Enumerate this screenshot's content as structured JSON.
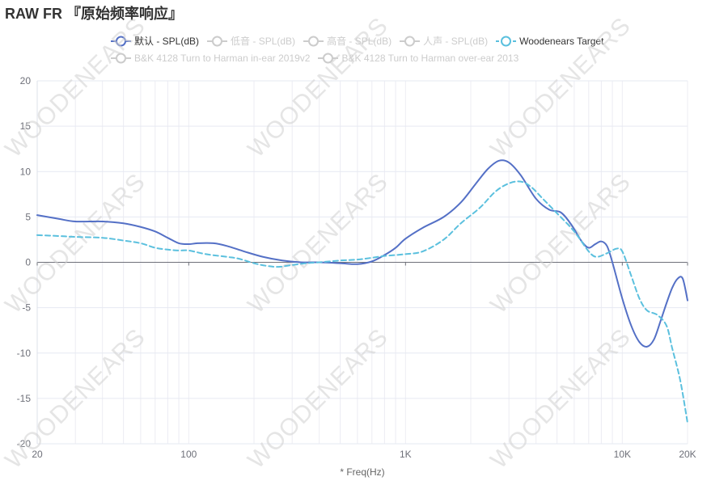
{
  "title": "RAW FR 『原始频率响应』",
  "watermark": "WOODENEARS",
  "legend": {
    "items": [
      {
        "label": "默认 - SPL(dB)",
        "color": "#5470c6",
        "active": true,
        "dashed": false
      },
      {
        "label": "低音 - SPL(dB)",
        "color": "#cccccc",
        "active": false,
        "dashed": false
      },
      {
        "label": "高音 - SPL(dB)",
        "color": "#cccccc",
        "active": false,
        "dashed": false
      },
      {
        "label": "人声 - SPL(dB)",
        "color": "#cccccc",
        "active": false,
        "dashed": false
      },
      {
        "label": "Woodenears Target",
        "color": "#5bc0de",
        "active": true,
        "dashed": true
      },
      {
        "label": "B&K 4128 Turn to Harman in-ear 2019v2",
        "color": "#cccccc",
        "active": false,
        "dashed": false
      },
      {
        "label": "B&K 4128 Turn to Harman over-ear 2013",
        "color": "#cccccc",
        "active": false,
        "dashed": false
      }
    ]
  },
  "chart_data": {
    "type": "line",
    "x_scale": "log",
    "xlim": [
      20,
      20000
    ],
    "ylim": [
      -20,
      20
    ],
    "xlabel": "* Freq(Hz)",
    "ylabel": "",
    "x_ticks": [
      {
        "value": 20,
        "label": "20"
      },
      {
        "value": 100,
        "label": "100"
      },
      {
        "value": 1000,
        "label": "1K"
      },
      {
        "value": 10000,
        "label": "10K"
      },
      {
        "value": 20000,
        "label": "20K"
      }
    ],
    "y_ticks": [
      -20,
      -15,
      -10,
      -5,
      0,
      5,
      10,
      15,
      20
    ],
    "grid": true,
    "legend_position": "top",
    "series": [
      {
        "name": "默认 - SPL(dB)",
        "color": "#5470c6",
        "style": "solid",
        "points": [
          [
            20,
            5.2
          ],
          [
            25,
            4.8
          ],
          [
            30,
            4.5
          ],
          [
            40,
            4.5
          ],
          [
            50,
            4.3
          ],
          [
            60,
            3.9
          ],
          [
            70,
            3.4
          ],
          [
            80,
            2.7
          ],
          [
            90,
            2.1
          ],
          [
            100,
            2.0
          ],
          [
            110,
            2.1
          ],
          [
            130,
            2.1
          ],
          [
            150,
            1.8
          ],
          [
            180,
            1.2
          ],
          [
            220,
            0.6
          ],
          [
            270,
            0.2
          ],
          [
            330,
            0.0
          ],
          [
            400,
            0.0
          ],
          [
            500,
            -0.1
          ],
          [
            600,
            -0.2
          ],
          [
            700,
            0.1
          ],
          [
            800,
            0.8
          ],
          [
            900,
            1.6
          ],
          [
            1000,
            2.6
          ],
          [
            1200,
            3.8
          ],
          [
            1500,
            5.0
          ],
          [
            1800,
            6.6
          ],
          [
            2100,
            8.6
          ],
          [
            2400,
            10.3
          ],
          [
            2700,
            11.2
          ],
          [
            3000,
            11.0
          ],
          [
            3400,
            9.6
          ],
          [
            4000,
            7.0
          ],
          [
            4600,
            5.8
          ],
          [
            5200,
            5.5
          ],
          [
            5800,
            4.2
          ],
          [
            6500,
            2.3
          ],
          [
            7000,
            1.6
          ],
          [
            7500,
            2.0
          ],
          [
            8000,
            2.3
          ],
          [
            8500,
            1.8
          ],
          [
            9000,
            0.0
          ],
          [
            10000,
            -4.0
          ],
          [
            11000,
            -7.0
          ],
          [
            12000,
            -8.8
          ],
          [
            13000,
            -9.3
          ],
          [
            14000,
            -8.5
          ],
          [
            15000,
            -6.5
          ],
          [
            16000,
            -4.5
          ],
          [
            17000,
            -2.8
          ],
          [
            18000,
            -1.8
          ],
          [
            19000,
            -1.8
          ],
          [
            20000,
            -4.2
          ]
        ]
      },
      {
        "name": "Woodenears Target",
        "color": "#5bc0de",
        "style": "dashed",
        "points": [
          [
            20,
            3.0
          ],
          [
            25,
            2.9
          ],
          [
            30,
            2.8
          ],
          [
            40,
            2.7
          ],
          [
            50,
            2.4
          ],
          [
            60,
            2.1
          ],
          [
            70,
            1.6
          ],
          [
            80,
            1.4
          ],
          [
            90,
            1.3
          ],
          [
            100,
            1.3
          ],
          [
            120,
            0.9
          ],
          [
            150,
            0.6
          ],
          [
            170,
            0.4
          ],
          [
            200,
            -0.1
          ],
          [
            230,
            -0.4
          ],
          [
            260,
            -0.5
          ],
          [
            300,
            -0.3
          ],
          [
            350,
            -0.1
          ],
          [
            400,
            0.0
          ],
          [
            500,
            0.2
          ],
          [
            600,
            0.3
          ],
          [
            700,
            0.5
          ],
          [
            800,
            0.7
          ],
          [
            1000,
            0.9
          ],
          [
            1200,
            1.2
          ],
          [
            1500,
            2.5
          ],
          [
            1800,
            4.3
          ],
          [
            2200,
            6.0
          ],
          [
            2600,
            7.8
          ],
          [
            3000,
            8.7
          ],
          [
            3400,
            8.9
          ],
          [
            3800,
            8.3
          ],
          [
            4300,
            7.0
          ],
          [
            5000,
            5.4
          ],
          [
            6000,
            3.4
          ],
          [
            7000,
            1.2
          ],
          [
            7600,
            0.6
          ],
          [
            8500,
            1.0
          ],
          [
            9400,
            1.5
          ],
          [
            10000,
            1.2
          ],
          [
            11000,
            -1.5
          ],
          [
            12000,
            -4.0
          ],
          [
            13000,
            -5.3
          ],
          [
            14500,
            -5.8
          ],
          [
            16000,
            -7.0
          ],
          [
            17000,
            -9.5
          ],
          [
            18500,
            -13.0
          ],
          [
            20000,
            -17.7
          ]
        ]
      }
    ]
  }
}
